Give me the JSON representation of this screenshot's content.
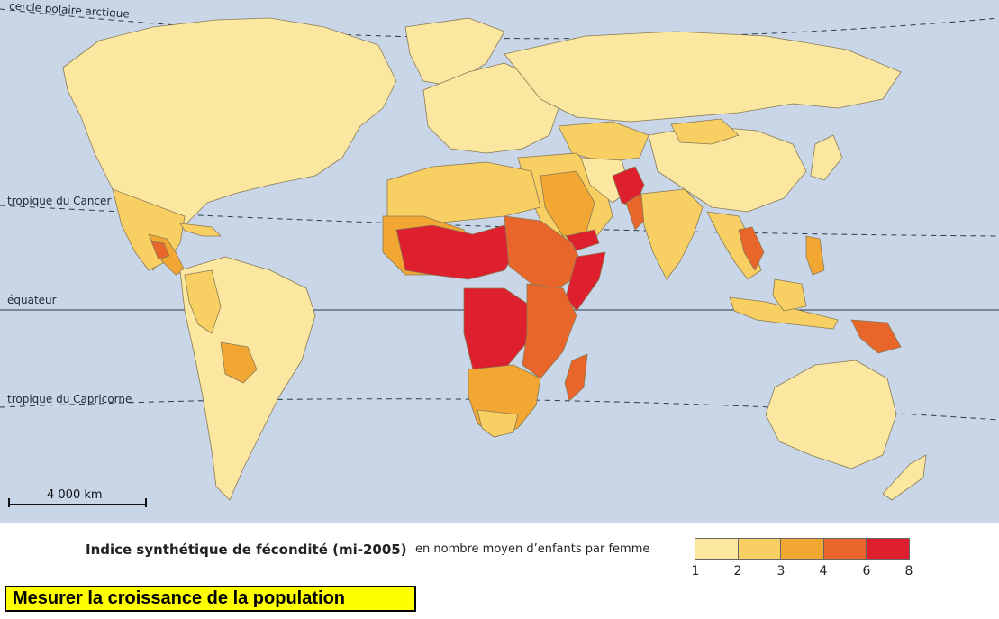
{
  "map": {
    "latitude_lines": {
      "arctic": "cercle polaire arctique",
      "cancer": "tropique du Cancer",
      "equator": "équateur",
      "capricorn": "tropique du Capricorne"
    },
    "scale_bar_label": "4 000 km"
  },
  "legend": {
    "title": "Indice synthétique de fécondité (mi-2005)",
    "subtitle": "en nombre moyen d’enfants par femme",
    "classes": [
      {
        "from": 1,
        "to": 2,
        "color": "#fbe7a0"
      },
      {
        "from": 2,
        "to": 3,
        "color": "#f8cf62"
      },
      {
        "from": 3,
        "to": 4,
        "color": "#f2a733"
      },
      {
        "from": 4,
        "to": 6,
        "color": "#e8662a"
      },
      {
        "from": 6,
        "to": 8,
        "color": "#dd1f2e"
      }
    ],
    "tick_labels": [
      "1",
      "2",
      "3",
      "4",
      "6",
      "8"
    ]
  },
  "caption": {
    "text": "Mesurer la croissance de la population",
    "background": "#ffff00"
  },
  "colors": {
    "ocean": "#c9d6e8",
    "border": "#8a7a55"
  }
}
